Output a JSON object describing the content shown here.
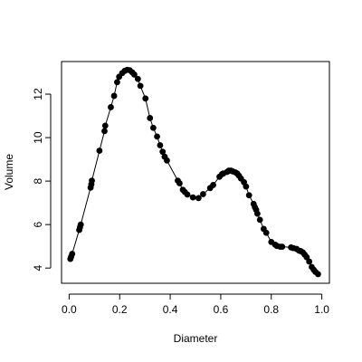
{
  "chart_data": {
    "type": "line",
    "xlabel": "Diameter",
    "ylabel": "Volume",
    "xlim": [
      -0.03,
      1.03
    ],
    "ylim": [
      3.3,
      13.5
    ],
    "grid": false,
    "legend": false,
    "x_ticks": [
      {
        "value": 0.0,
        "label": "0.0"
      },
      {
        "value": 0.2,
        "label": "0.2"
      },
      {
        "value": 0.4,
        "label": "0.4"
      },
      {
        "value": 0.6,
        "label": "0.6"
      },
      {
        "value": 0.8,
        "label": "0.8"
      },
      {
        "value": 1.0,
        "label": "1.0"
      }
    ],
    "y_ticks": [
      {
        "value": 4,
        "label": "4"
      },
      {
        "value": 6,
        "label": "6"
      },
      {
        "value": 8,
        "label": "8"
      },
      {
        "value": 10,
        "label": "10"
      },
      {
        "value": 12,
        "label": "12"
      }
    ],
    "series": [
      {
        "color": "#000000",
        "points": [
          [
            0.005,
            4.42
          ],
          [
            0.008,
            4.52
          ],
          [
            0.012,
            4.65
          ],
          [
            0.04,
            5.75
          ],
          [
            0.043,
            5.88
          ],
          [
            0.046,
            6.0
          ],
          [
            0.085,
            7.7
          ],
          [
            0.088,
            7.85
          ],
          [
            0.09,
            8.02
          ],
          [
            0.12,
            9.4
          ],
          [
            0.14,
            10.3
          ],
          [
            0.143,
            10.55
          ],
          [
            0.165,
            11.4
          ],
          [
            0.178,
            11.92
          ],
          [
            0.19,
            12.55
          ],
          [
            0.198,
            12.8
          ],
          [
            0.21,
            12.97
          ],
          [
            0.22,
            13.07
          ],
          [
            0.23,
            13.12
          ],
          [
            0.24,
            13.1
          ],
          [
            0.25,
            13.0
          ],
          [
            0.258,
            12.9
          ],
          [
            0.272,
            12.7
          ],
          [
            0.282,
            12.38
          ],
          [
            0.302,
            11.8
          ],
          [
            0.32,
            10.9
          ],
          [
            0.333,
            10.45
          ],
          [
            0.348,
            10.05
          ],
          [
            0.36,
            9.65
          ],
          [
            0.37,
            9.35
          ],
          [
            0.378,
            9.12
          ],
          [
            0.387,
            8.95
          ],
          [
            0.43,
            8.02
          ],
          [
            0.437,
            7.9
          ],
          [
            0.45,
            7.6
          ],
          [
            0.458,
            7.5
          ],
          [
            0.468,
            7.38
          ],
          [
            0.49,
            7.25
          ],
          [
            0.512,
            7.22
          ],
          [
            0.53,
            7.4
          ],
          [
            0.558,
            7.68
          ],
          [
            0.57,
            7.82
          ],
          [
            0.595,
            8.2
          ],
          [
            0.605,
            8.32
          ],
          [
            0.61,
            8.35
          ],
          [
            0.625,
            8.42
          ],
          [
            0.632,
            8.48
          ],
          [
            0.64,
            8.48
          ],
          [
            0.647,
            8.45
          ],
          [
            0.658,
            8.4
          ],
          [
            0.665,
            8.35
          ],
          [
            0.672,
            8.25
          ],
          [
            0.68,
            8.12
          ],
          [
            0.692,
            7.95
          ],
          [
            0.7,
            7.75
          ],
          [
            0.712,
            7.35
          ],
          [
            0.73,
            6.95
          ],
          [
            0.735,
            6.8
          ],
          [
            0.74,
            6.68
          ],
          [
            0.745,
            6.5
          ],
          [
            0.755,
            6.22
          ],
          [
            0.77,
            5.8
          ],
          [
            0.78,
            5.62
          ],
          [
            0.8,
            5.2
          ],
          [
            0.815,
            5.08
          ],
          [
            0.822,
            5.02
          ],
          [
            0.835,
            4.98
          ],
          [
            0.843,
            4.98
          ],
          [
            0.878,
            4.95
          ],
          [
            0.887,
            4.92
          ],
          [
            0.9,
            4.88
          ],
          [
            0.91,
            4.8
          ],
          [
            0.916,
            4.78
          ],
          [
            0.925,
            4.72
          ],
          [
            0.932,
            4.62
          ],
          [
            0.94,
            4.5
          ],
          [
            0.95,
            4.3
          ],
          [
            0.96,
            4.05
          ],
          [
            0.968,
            3.92
          ],
          [
            0.975,
            3.82
          ],
          [
            0.985,
            3.72
          ]
        ]
      }
    ]
  }
}
